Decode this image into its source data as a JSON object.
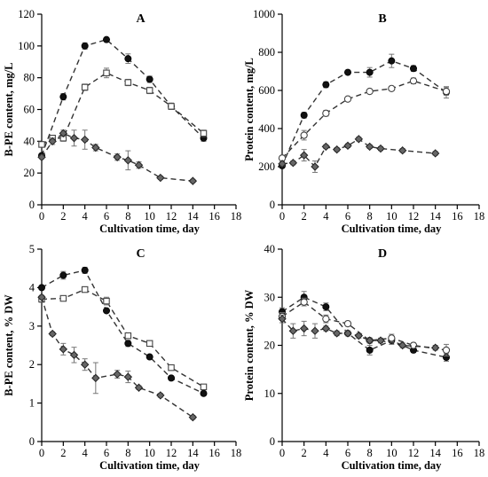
{
  "chart_data": [
    {
      "type": "line",
      "panel": "A",
      "xlabel": "Cultivation time, day",
      "ylabel": "B-PE content, mg/L",
      "xlim": [
        0,
        18
      ],
      "ylim": [
        0,
        120
      ],
      "xticks": [
        0,
        2,
        4,
        6,
        8,
        10,
        12,
        14,
        16,
        18
      ],
      "yticks": [
        0,
        20,
        40,
        60,
        80,
        100,
        120
      ],
      "series": [
        {
          "marker": "filled-circle",
          "x": [
            0,
            2,
            4,
            6,
            8,
            10,
            12,
            15
          ],
          "y": [
            31,
            68,
            100,
            104,
            92,
            79,
            62,
            42
          ],
          "err": [
            1,
            2,
            2,
            1,
            3,
            2,
            2,
            2
          ]
        },
        {
          "marker": "open-square",
          "x": [
            0,
            1,
            2,
            4,
            6,
            8,
            10,
            12,
            15
          ],
          "y": [
            38,
            42,
            42,
            74,
            83,
            77,
            72,
            62,
            45
          ],
          "err": [
            1,
            1,
            2,
            2,
            3,
            2,
            2,
            2,
            2
          ]
        },
        {
          "marker": "diamond",
          "x": [
            0,
            1,
            2,
            3,
            4,
            5,
            7,
            8,
            9,
            11,
            14
          ],
          "y": [
            30,
            40,
            45,
            42,
            41,
            36,
            30,
            28,
            25,
            17,
            15
          ],
          "err": [
            1,
            2,
            2,
            5,
            6,
            2,
            2,
            6,
            2,
            1,
            1
          ]
        }
      ]
    },
    {
      "type": "line",
      "panel": "B",
      "xlabel": "Cultivation time, day",
      "ylabel": "Protein content, mg/L",
      "xlim": [
        0,
        18
      ],
      "ylim": [
        0,
        1000
      ],
      "xticks": [
        0,
        2,
        4,
        6,
        8,
        10,
        12,
        14,
        16,
        18
      ],
      "yticks": [
        0,
        200,
        400,
        600,
        800,
        1000
      ],
      "series": [
        {
          "marker": "filled-circle",
          "x": [
            0,
            2,
            4,
            6,
            8,
            10,
            12,
            15
          ],
          "y": [
            205,
            470,
            630,
            695,
            695,
            755,
            715,
            590
          ],
          "err": [
            10,
            15,
            15,
            10,
            25,
            35,
            15,
            30
          ]
        },
        {
          "marker": "open-circle",
          "x": [
            0,
            2,
            4,
            6,
            8,
            10,
            12,
            15
          ],
          "y": [
            245,
            365,
            480,
            555,
            595,
            610,
            650,
            595
          ],
          "err": [
            10,
            25,
            15,
            10,
            10,
            10,
            15,
            20
          ]
        },
        {
          "marker": "diamond",
          "x": [
            0,
            1,
            2,
            3,
            4,
            5,
            6,
            7,
            8,
            9,
            11,
            14
          ],
          "y": [
            215,
            220,
            260,
            200,
            305,
            290,
            310,
            345,
            305,
            295,
            285,
            270
          ],
          "err": [
            10,
            10,
            30,
            30,
            10,
            10,
            10,
            10,
            10,
            10,
            10,
            10
          ]
        }
      ]
    },
    {
      "type": "line",
      "panel": "C",
      "xlabel": "Cultivation time, day",
      "ylabel": "B-PE content, % DW",
      "xlim": [
        0,
        18
      ],
      "ylim": [
        0,
        5
      ],
      "xticks": [
        0,
        2,
        4,
        6,
        8,
        10,
        12,
        14,
        16,
        18
      ],
      "yticks": [
        0,
        1,
        2,
        3,
        4,
        5
      ],
      "series": [
        {
          "marker": "filled-circle",
          "x": [
            0,
            2,
            4,
            6,
            8,
            10,
            12,
            15
          ],
          "y": [
            4.0,
            4.32,
            4.45,
            3.4,
            2.55,
            2.2,
            1.65,
            1.25
          ],
          "err": [
            0.05,
            0.1,
            0.08,
            0.05,
            0.08,
            0.05,
            0.05,
            0.05
          ]
        },
        {
          "marker": "open-square",
          "x": [
            0,
            2,
            4,
            6,
            8,
            10,
            12,
            15
          ],
          "y": [
            3.7,
            3.72,
            3.95,
            3.65,
            2.75,
            2.55,
            1.92,
            1.42
          ],
          "err": [
            0.08,
            0.05,
            0.05,
            0.1,
            0.05,
            0.05,
            0.05,
            0.05
          ]
        },
        {
          "marker": "diamond",
          "x": [
            0,
            1,
            2,
            3,
            4,
            5,
            7,
            8,
            9,
            11,
            14
          ],
          "y": [
            3.75,
            2.8,
            2.4,
            2.25,
            2.0,
            1.65,
            1.75,
            1.68,
            1.4,
            1.2,
            0.63
          ],
          "err": [
            0.05,
            0.05,
            0.15,
            0.2,
            0.15,
            0.4,
            0.1,
            0.15,
            0.05,
            0.05,
            0.05
          ]
        }
      ]
    },
    {
      "type": "line",
      "panel": "D",
      "xlabel": "Cultivation time, day",
      "ylabel": "Protein content, % DW",
      "xlim": [
        0,
        18
      ],
      "ylim": [
        0,
        40
      ],
      "xticks": [
        0,
        2,
        4,
        6,
        8,
        10,
        12,
        14,
        16,
        18
      ],
      "yticks": [
        0,
        10,
        20,
        30,
        40
      ],
      "series": [
        {
          "marker": "filled-circle",
          "x": [
            0,
            2,
            4,
            6,
            8,
            10,
            12,
            15
          ],
          "y": [
            27,
            30,
            28,
            22.5,
            19,
            21,
            19,
            17.5
          ],
          "err": [
            0.8,
            1.2,
            0.8,
            0.5,
            1,
            0.8,
            0.5,
            0.8
          ]
        },
        {
          "marker": "open-circle",
          "x": [
            0,
            2,
            4,
            6,
            8,
            10,
            12,
            15
          ],
          "y": [
            26,
            29,
            25.5,
            24.5,
            21,
            21.5,
            20,
            19
          ],
          "err": [
            0.8,
            0.8,
            0.8,
            0.5,
            0.5,
            0.8,
            0.5,
            1.2
          ]
        },
        {
          "marker": "diamond",
          "x": [
            0,
            1,
            2,
            3,
            4,
            5,
            6,
            7,
            8,
            9,
            11,
            14
          ],
          "y": [
            25.5,
            23,
            23.5,
            23,
            23.5,
            22.5,
            22.5,
            22,
            21,
            21,
            20,
            19.5
          ],
          "err": [
            0.8,
            1.5,
            1.5,
            1.5,
            0.5,
            0.5,
            0.5,
            0.5,
            0.5,
            0.5,
            0.5,
            0.5
          ]
        }
      ]
    }
  ]
}
